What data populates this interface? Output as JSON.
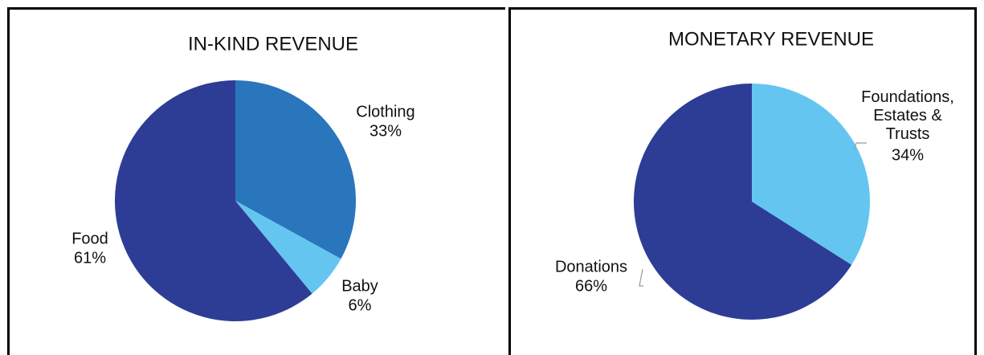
{
  "chart_data": [
    {
      "type": "pie",
      "title": "IN-KIND REVENUE",
      "categories": [
        "Clothing",
        "Baby",
        "Food"
      ],
      "values": [
        33,
        6,
        61
      ],
      "value_labels": [
        "33%",
        "6%",
        "61%"
      ],
      "colors": [
        "#2a76bc",
        "#64c6f0",
        "#2d3d96"
      ]
    },
    {
      "type": "pie",
      "title": "MONETARY REVENUE",
      "categories": [
        "Foundations, Estates & Trusts",
        "Donations"
      ],
      "values": [
        34,
        66
      ],
      "value_labels": [
        "34%",
        "66%"
      ],
      "colors": [
        "#64c6f0",
        "#2d3d96"
      ]
    }
  ]
}
